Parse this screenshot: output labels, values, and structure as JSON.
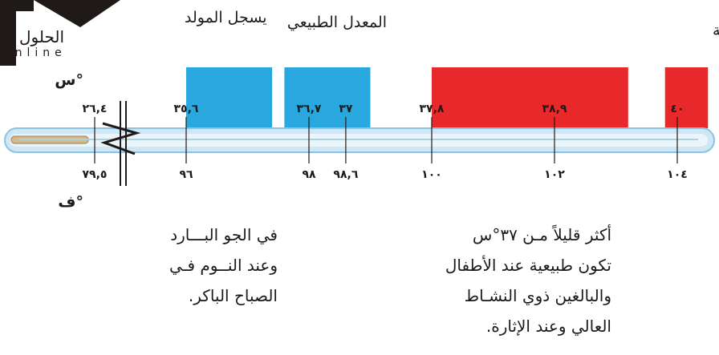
{
  "logo": {
    "arabic": "الحلول",
    "latin": "online"
  },
  "headers": {
    "left": "يسجل المولد",
    "center": "المعدل الطبيعي",
    "right": "تمارين شاقة"
  },
  "units": {
    "celsius": "س°",
    "fahrenheit": "ف°"
  },
  "chart_data": {
    "type": "thermometer-scale",
    "colors": {
      "cool": "#29a8e0",
      "hot": "#e8282b",
      "tube": "#a9d4ec"
    },
    "celsius_ticks": [
      {
        "value": 35.6,
        "label": "٣٥,٦"
      },
      {
        "value": 36.7,
        "label": "٣٦,٧"
      },
      {
        "value": 37,
        "label": "٣٧"
      },
      {
        "value": 37.8,
        "label": "٣٧,٨"
      },
      {
        "value": 38.9,
        "label": "٣٨,٩"
      },
      {
        "value": 40,
        "label": "٤٠"
      }
    ],
    "fahrenheit_ticks": [
      {
        "value": 96,
        "label": "٩٦"
      },
      {
        "value": 98,
        "label": "٩٨"
      },
      {
        "value": 98.6,
        "label": "٩٨,٦"
      },
      {
        "value": 100,
        "label": "١٠٠"
      },
      {
        "value": 102,
        "label": "١٠٢"
      },
      {
        "value": 104,
        "label": "١٠٤"
      }
    ],
    "break_left": {
      "celsius": "٢٦,٤",
      "fahrenheit": "٧٩,٥"
    },
    "bands": [
      {
        "name": "cool",
        "from_f": 96,
        "to_f": 97.4,
        "color": "#29a8e0"
      },
      {
        "name": "normal",
        "from_f": 97.6,
        "to_f": 99.0,
        "color": "#29a8e0"
      },
      {
        "name": "elevated",
        "from_f": 100,
        "to_f": 103.2,
        "color": "#e8282b"
      },
      {
        "name": "strenuous",
        "from_f": 103.8,
        "to_f": 104.5,
        "color": "#e8282b"
      }
    ]
  },
  "notes": {
    "cold": [
      "في الجو البـــارد",
      "وعند النــوم فـي",
      "الصباح الباكر."
    ],
    "warm": [
      "أكثر قليلاً مـن ٣٧°س",
      "تكون طبيعية عند الأطفال",
      "والبالغين ذوي النشـاط",
      "العالي وعند الإثارة."
    ]
  }
}
